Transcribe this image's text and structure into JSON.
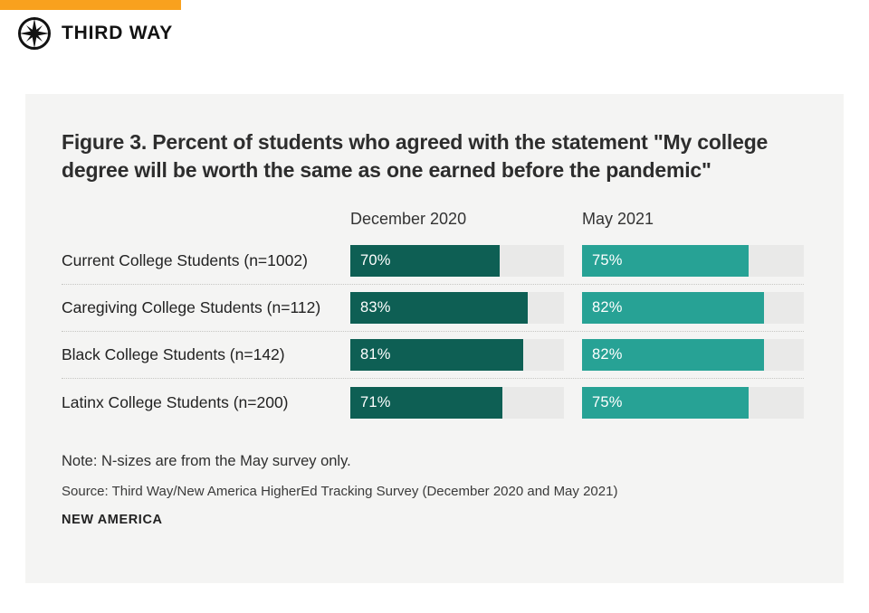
{
  "brand": {
    "name": "THIRD WAY",
    "accent_color": "#F9A11E"
  },
  "figure": {
    "title": "Figure 3. Percent of students who agreed with the statement \"My college degree will be worth the same as one earned before the pandemic\"",
    "note": "Note: N-sizes are from the May survey only.",
    "source": "Source: Third Way/New America HigherEd Tracking Survey (December 2020 and May 2021)",
    "attribution": "NEW AMERICA"
  },
  "chart_data": {
    "type": "bar",
    "orientation": "horizontal",
    "title": "Percent of students who agreed with the statement \"My college degree will be worth the same as one earned before the pandemic\"",
    "categories": [
      "Current College Students (n=1002)",
      "Caregiving College Students (n=112)",
      "Black College Students (n=142)",
      "Latinx College Students (n=200)"
    ],
    "series": [
      {
        "name": "December 2020",
        "color": "#0E5F54",
        "values": [
          70,
          83,
          81,
          71
        ]
      },
      {
        "name": "May 2021",
        "color": "#27A295",
        "values": [
          75,
          82,
          82,
          75
        ]
      }
    ],
    "value_suffix": "%",
    "xlim": [
      0,
      100
    ],
    "grid": false,
    "legend_position": "column-headers",
    "track_color": "#E9E9E8"
  }
}
